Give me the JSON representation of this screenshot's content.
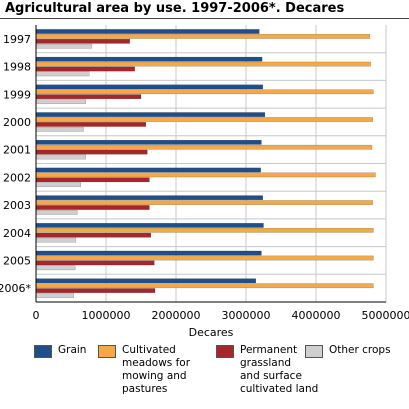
{
  "chart_data": {
    "type": "bar",
    "orientation": "horizontal",
    "title": "Agricultural area by use. 1997-2006*. Decares",
    "xlabel": "Decares",
    "ylabel": "",
    "xlim": [
      0,
      5000000
    ],
    "xticks": [
      "0",
      "1000000",
      "2000000",
      "3000000",
      "4000000",
      "5000000"
    ],
    "grid": true,
    "legend_position": "bottom",
    "categories": [
      "1997",
      "1998",
      "1999",
      "2000",
      "2001",
      "2002",
      "2003",
      "2004",
      "2005",
      "2006*"
    ],
    "series": [
      {
        "name": "Grain",
        "color": "#1f4e8c",
        "values": [
          3190000,
          3230000,
          3240000,
          3270000,
          3220000,
          3210000,
          3240000,
          3250000,
          3220000,
          3140000
        ]
      },
      {
        "name": "Cultivated meadows for mowing and pastures",
        "color": "#f5a84a",
        "values": [
          4770000,
          4780000,
          4820000,
          4810000,
          4800000,
          4850000,
          4810000,
          4820000,
          4820000,
          4820000
        ]
      },
      {
        "name": "Permanent grassland and surface cultivated land",
        "color": "#a6262a",
        "values": [
          1340000,
          1410000,
          1500000,
          1570000,
          1590000,
          1620000,
          1620000,
          1640000,
          1690000,
          1700000
        ]
      },
      {
        "name": "Other crops",
        "color": "#cfcfcf",
        "values": [
          800000,
          760000,
          710000,
          680000,
          710000,
          640000,
          590000,
          570000,
          560000,
          540000
        ]
      }
    ]
  },
  "legend": {
    "items": [
      {
        "label": "Grain",
        "color": "#1f4e8c"
      },
      {
        "label": "Cultivated\nmeadows for\nmowing and\npastures",
        "color": "#f5a84a"
      },
      {
        "label": "Permanent\ngrassland\nand surface\ncultivated land",
        "color": "#a6262a"
      },
      {
        "label": "Other crops",
        "color": "#cfcfcf"
      }
    ]
  }
}
